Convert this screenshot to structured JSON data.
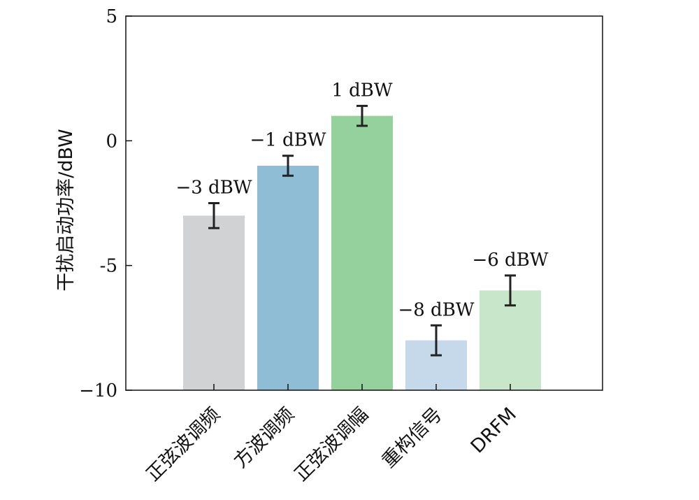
{
  "chart_data": {
    "type": "bar",
    "title": "",
    "xlabel": "",
    "ylabel": "干扰启动功率/dBW",
    "ylim": [
      -10,
      5
    ],
    "yticks": [
      5,
      0,
      -5,
      -10
    ],
    "ytick_labels": [
      "5",
      "0",
      "-5",
      "−10"
    ],
    "categories": [
      "正弦波调频",
      "方波调频",
      "正弦波调幅",
      "重构信号",
      "DRFM"
    ],
    "values": [
      -3,
      -1,
      1,
      -8,
      -6
    ],
    "error": [
      0.5,
      0.4,
      0.4,
      0.6,
      0.6
    ],
    "data_labels": [
      "−3 dBW",
      "−1 dBW",
      "1 dBW",
      "−8 dBW",
      "−6 dBW"
    ],
    "colors": [
      "#d1d2d4",
      "#8fbdd6",
      "#95d19c",
      "#c5d9ea",
      "#c8e6c9"
    ],
    "grid": false,
    "legend": "none"
  }
}
